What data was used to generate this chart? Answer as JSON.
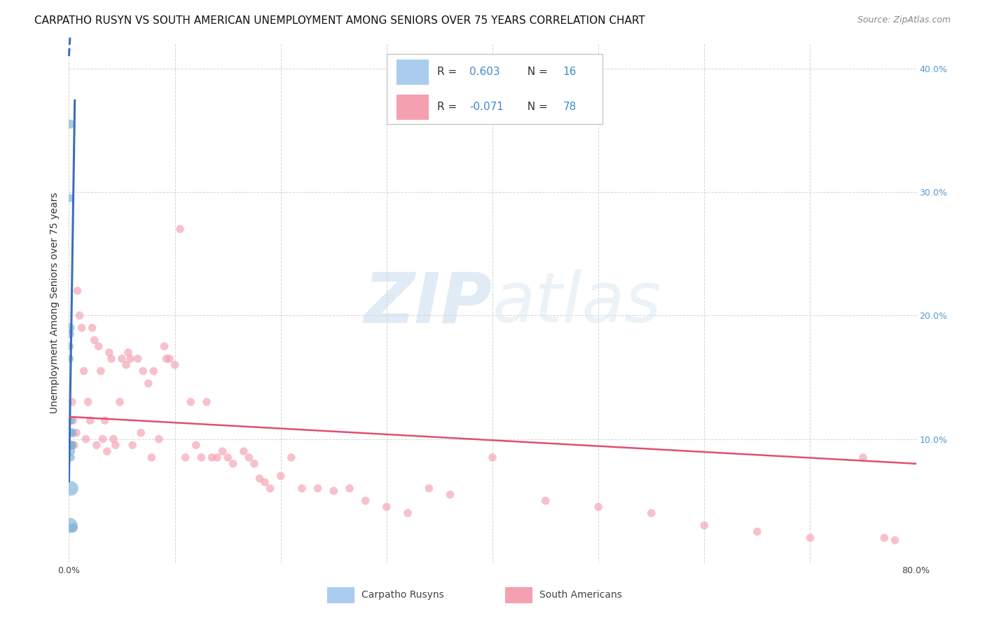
{
  "title": "CARPATHO RUSYN VS SOUTH AMERICAN UNEMPLOYMENT AMONG SENIORS OVER 75 YEARS CORRELATION CHART",
  "source": "Source: ZipAtlas.com",
  "ylabel": "Unemployment Among Seniors over 75 years",
  "xlim": [
    0,
    0.8
  ],
  "ylim": [
    0,
    0.42
  ],
  "legend_blue_r": "0.603",
  "legend_blue_n": "16",
  "legend_pink_r": "-0.071",
  "legend_pink_n": "78",
  "legend_label_blue": "Carpatho Rusyns",
  "legend_label_pink": "South Americans",
  "blue_color": "#7bafd4",
  "pink_color": "#f4a0b0",
  "blue_scatter_x": [
    0.001,
    0.001,
    0.001,
    0.001,
    0.001,
    0.001,
    0.002,
    0.002,
    0.002,
    0.002,
    0.002,
    0.002,
    0.003,
    0.003,
    0.004,
    0.001
  ],
  "blue_scatter_y": [
    0.355,
    0.295,
    0.19,
    0.185,
    0.175,
    0.165,
    0.115,
    0.105,
    0.095,
    0.09,
    0.085,
    0.06,
    0.105,
    0.095,
    0.028,
    0.03
  ],
  "blue_scatter_sizes": [
    90,
    70,
    90,
    70,
    55,
    55,
    70,
    55,
    90,
    70,
    60,
    220,
    90,
    70,
    90,
    240
  ],
  "pink_scatter_x": [
    0.003,
    0.004,
    0.005,
    0.007,
    0.008,
    0.01,
    0.012,
    0.014,
    0.016,
    0.018,
    0.02,
    0.022,
    0.024,
    0.026,
    0.028,
    0.03,
    0.032,
    0.034,
    0.036,
    0.038,
    0.04,
    0.042,
    0.044,
    0.048,
    0.05,
    0.054,
    0.056,
    0.058,
    0.06,
    0.065,
    0.068,
    0.07,
    0.075,
    0.078,
    0.08,
    0.085,
    0.09,
    0.092,
    0.095,
    0.1,
    0.105,
    0.11,
    0.115,
    0.12,
    0.125,
    0.13,
    0.135,
    0.14,
    0.145,
    0.15,
    0.155,
    0.165,
    0.17,
    0.175,
    0.18,
    0.185,
    0.19,
    0.2,
    0.21,
    0.22,
    0.235,
    0.25,
    0.265,
    0.28,
    0.3,
    0.32,
    0.34,
    0.36,
    0.4,
    0.45,
    0.5,
    0.55,
    0.6,
    0.65,
    0.7,
    0.75,
    0.77,
    0.78
  ],
  "pink_scatter_y": [
    0.13,
    0.115,
    0.095,
    0.105,
    0.22,
    0.2,
    0.19,
    0.155,
    0.1,
    0.13,
    0.115,
    0.19,
    0.18,
    0.095,
    0.175,
    0.155,
    0.1,
    0.115,
    0.09,
    0.17,
    0.165,
    0.1,
    0.095,
    0.13,
    0.165,
    0.16,
    0.17,
    0.165,
    0.095,
    0.165,
    0.105,
    0.155,
    0.145,
    0.085,
    0.155,
    0.1,
    0.175,
    0.165,
    0.165,
    0.16,
    0.27,
    0.085,
    0.13,
    0.095,
    0.085,
    0.13,
    0.085,
    0.085,
    0.09,
    0.085,
    0.08,
    0.09,
    0.085,
    0.08,
    0.068,
    0.065,
    0.06,
    0.07,
    0.085,
    0.06,
    0.06,
    0.058,
    0.06,
    0.05,
    0.045,
    0.04,
    0.06,
    0.055,
    0.085,
    0.05,
    0.045,
    0.04,
    0.03,
    0.025,
    0.02,
    0.085,
    0.02,
    0.018
  ],
  "pink_scatter_sizes": [
    70,
    70,
    70,
    70,
    70,
    70,
    70,
    70,
    70,
    70,
    70,
    70,
    70,
    70,
    70,
    70,
    70,
    70,
    70,
    70,
    70,
    70,
    70,
    70,
    70,
    70,
    70,
    70,
    70,
    70,
    70,
    70,
    70,
    70,
    70,
    70,
    70,
    70,
    70,
    70,
    70,
    70,
    70,
    70,
    70,
    70,
    70,
    70,
    70,
    70,
    70,
    70,
    70,
    70,
    70,
    70,
    70,
    70,
    70,
    70,
    70,
    70,
    70,
    70,
    70,
    70,
    70,
    70,
    70,
    70,
    70,
    70,
    70,
    70,
    70,
    70,
    70,
    70
  ],
  "blue_trend_x": [
    0.0,
    0.0055
  ],
  "blue_trend_y": [
    0.065,
    0.375
  ],
  "pink_trend_x": [
    0.0,
    0.8
  ],
  "pink_trend_y": [
    0.118,
    0.08
  ],
  "watermark_zip": "ZIP",
  "watermark_atlas": "atlas",
  "bg_color": "#ffffff",
  "grid_color": "#d0d0d0",
  "title_fontsize": 11,
  "source_fontsize": 9,
  "axis_label_fontsize": 10,
  "tick_fontsize": 9,
  "legend_fontsize": 11
}
